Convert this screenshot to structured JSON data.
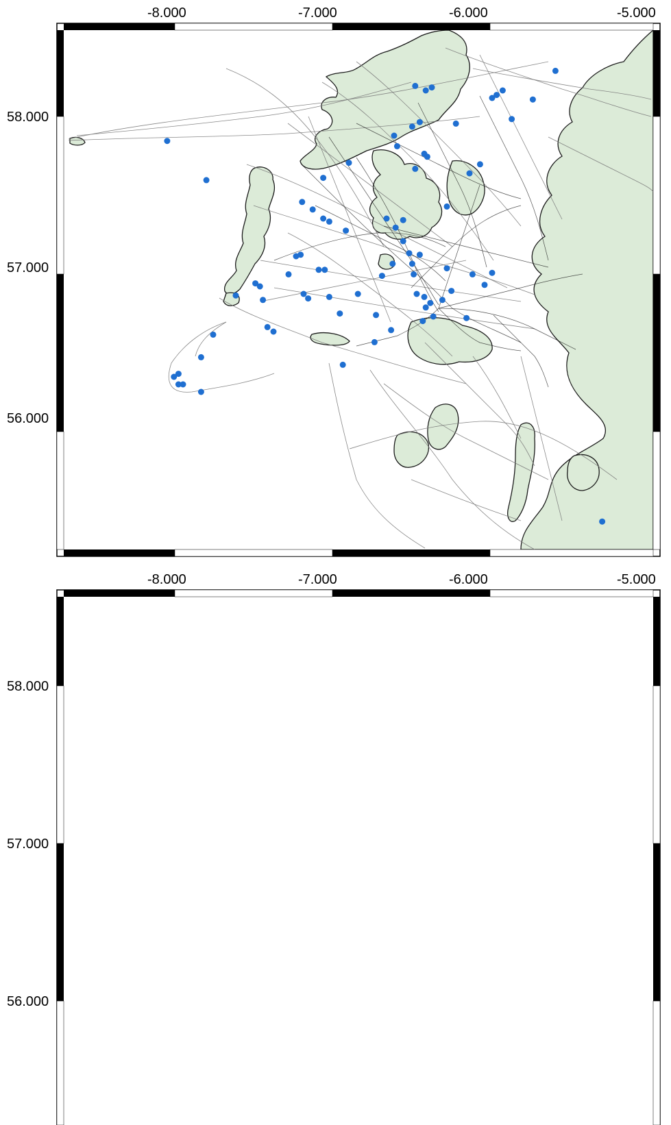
{
  "maps": [
    {
      "id": "top",
      "x_ticks": [
        "-8.000",
        "-7.000",
        "-6.000",
        "-5.000"
      ],
      "y_ticks": [
        "58.000",
        "57.000",
        "56.000"
      ],
      "marker_color": "#1f6fd1",
      "marker_type": "sparse-dots"
    },
    {
      "id": "bottom",
      "x_ticks": [
        "-8.000",
        "-7.000",
        "-6.000",
        "-5.000"
      ],
      "y_ticks": [
        "58.000",
        "57.000",
        "56.000"
      ],
      "marker_color": "#c8102e",
      "marker_type": "dense-points"
    }
  ],
  "colors": {
    "land": "#dcebd8",
    "coast": "#1a1a1a",
    "tracks": "#7a7a7a",
    "frame_dark": "#000000",
    "frame_light": "#ffffff"
  },
  "blue_points": [
    [
      -8.005,
      57.815
    ],
    [
      -7.745,
      57.555
    ],
    [
      -7.55,
      56.79
    ],
    [
      -7.39,
      56.85
    ],
    [
      -7.37,
      56.76
    ],
    [
      -7.34,
      56.58
    ],
    [
      -7.3,
      56.55
    ],
    [
      -7.42,
      56.87
    ],
    [
      -7.2,
      56.93
    ],
    [
      -7.15,
      57.05
    ],
    [
      -7.12,
      57.06
    ],
    [
      -7.11,
      57.41
    ],
    [
      -7.04,
      57.36
    ],
    [
      -6.97,
      57.3
    ],
    [
      -6.93,
      57.28
    ],
    [
      -6.97,
      57.57
    ],
    [
      -6.8,
      57.67
    ],
    [
      -6.82,
      57.22
    ],
    [
      -6.74,
      56.8
    ],
    [
      -6.62,
      56.66
    ],
    [
      -6.63,
      56.48
    ],
    [
      -6.52,
      56.56
    ],
    [
      -6.5,
      57.85
    ],
    [
      -6.48,
      57.78
    ],
    [
      -6.38,
      57.91
    ],
    [
      -6.33,
      57.94
    ],
    [
      -6.36,
      58.18
    ],
    [
      -6.29,
      58.15
    ],
    [
      -6.25,
      58.17
    ],
    [
      -6.09,
      57.93
    ],
    [
      -5.85,
      58.1
    ],
    [
      -5.82,
      58.12
    ],
    [
      -5.78,
      58.15
    ],
    [
      -5.72,
      57.96
    ],
    [
      -5.58,
      58.09
    ],
    [
      -5.43,
      58.28
    ],
    [
      -5.93,
      57.66
    ],
    [
      -6.0,
      57.6
    ],
    [
      -6.15,
      57.38
    ],
    [
      -6.36,
      57.63
    ],
    [
      -6.3,
      57.73
    ],
    [
      -6.28,
      57.71
    ],
    [
      -6.44,
      57.29
    ],
    [
      -6.55,
      57.3
    ],
    [
      -6.49,
      57.24
    ],
    [
      -6.44,
      57.15
    ],
    [
      -6.4,
      57.07
    ],
    [
      -6.33,
      57.06
    ],
    [
      -6.38,
      57.0
    ],
    [
      -6.37,
      56.93
    ],
    [
      -6.35,
      56.8
    ],
    [
      -6.3,
      56.78
    ],
    [
      -6.29,
      56.71
    ],
    [
      -6.26,
      56.74
    ],
    [
      -6.31,
      56.62
    ],
    [
      -6.24,
      56.65
    ],
    [
      -6.18,
      56.76
    ],
    [
      -6.12,
      56.82
    ],
    [
      -6.02,
      56.64
    ],
    [
      -5.98,
      56.93
    ],
    [
      -5.9,
      56.86
    ],
    [
      -5.85,
      56.94
    ],
    [
      -6.15,
      56.97
    ],
    [
      -7.1,
      56.8
    ],
    [
      -7.07,
      56.77
    ],
    [
      -7.0,
      56.96
    ],
    [
      -6.96,
      56.96
    ],
    [
      -6.93,
      56.78
    ],
    [
      -6.86,
      56.67
    ],
    [
      -6.84,
      56.33
    ],
    [
      -7.78,
      56.15
    ],
    [
      -7.96,
      56.25
    ],
    [
      -7.93,
      56.27
    ],
    [
      -7.93,
      56.2
    ],
    [
      -7.9,
      56.2
    ],
    [
      -7.78,
      56.38
    ],
    [
      -7.7,
      56.53
    ],
    [
      -5.12,
      55.29
    ],
    [
      -6.51,
      57.0
    ],
    [
      -6.58,
      56.92
    ]
  ]
}
